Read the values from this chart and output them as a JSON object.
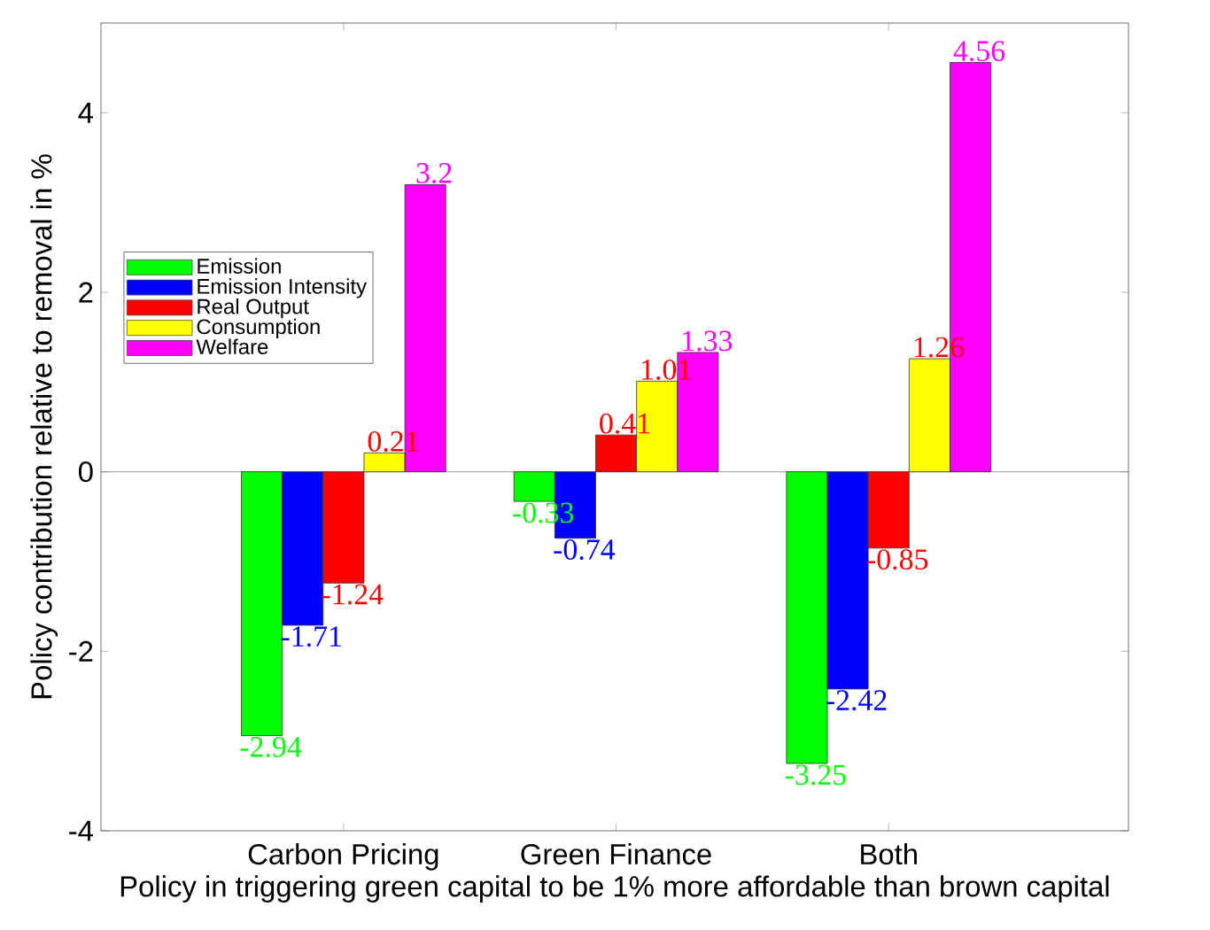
{
  "chart_data": {
    "type": "bar",
    "xlabel": "Policy in triggering green capital to be 1% more affordable than brown capital",
    "ylabel": "Policy contribution relative to removal in %",
    "categories": [
      "Carbon Pricing",
      "Green Finance",
      "Both"
    ],
    "series": [
      {
        "name": "Emission",
        "color": "#00ff00",
        "values": [
          -2.94,
          -0.33,
          -3.25
        ]
      },
      {
        "name": "Emission Intensity",
        "color": "#0000ff",
        "values": [
          -1.71,
          -0.74,
          -2.42
        ]
      },
      {
        "name": "Real Output",
        "color": "#ff0000",
        "values": [
          -1.24,
          0.41,
          -0.85
        ]
      },
      {
        "name": "Consumption",
        "color": "#ffff00",
        "values": [
          0.21,
          1.01,
          1.26
        ]
      },
      {
        "name": "Welfare",
        "color": "#ff00ff",
        "values": [
          3.2,
          1.33,
          4.56
        ]
      }
    ],
    "ylim": [
      -4,
      5
    ],
    "yticks": [
      -4,
      -2,
      0,
      2,
      4
    ],
    "ref_lines": [
      {
        "axis": "y",
        "value": 0,
        "color": "#808080"
      }
    ],
    "data_labels": true,
    "legend": "left",
    "grid": false
  }
}
